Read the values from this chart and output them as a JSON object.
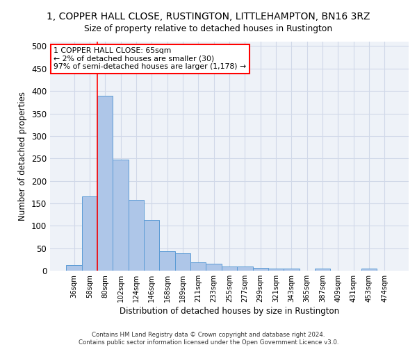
{
  "title": "1, COPPER HALL CLOSE, RUSTINGTON, LITTLEHAMPTON, BN16 3RZ",
  "subtitle": "Size of property relative to detached houses in Rustington",
  "xlabel": "Distribution of detached houses by size in Rustington",
  "ylabel": "Number of detached properties",
  "footer_line1": "Contains HM Land Registry data © Crown copyright and database right 2024.",
  "footer_line2": "Contains public sector information licensed under the Open Government Licence v3.0.",
  "bin_labels": [
    "36sqm",
    "58sqm",
    "80sqm",
    "102sqm",
    "124sqm",
    "146sqm",
    "168sqm",
    "189sqm",
    "211sqm",
    "233sqm",
    "255sqm",
    "277sqm",
    "299sqm",
    "321sqm",
    "343sqm",
    "365sqm",
    "387sqm",
    "409sqm",
    "431sqm",
    "453sqm",
    "474sqm"
  ],
  "bar_values": [
    13,
    165,
    390,
    248,
    157,
    113,
    43,
    39,
    18,
    15,
    10,
    9,
    6,
    5,
    4,
    0,
    5,
    0,
    0,
    5,
    0
  ],
  "bar_color": "#aec6e8",
  "bar_edge_color": "#5b9bd5",
  "grid_color": "#d0d8e8",
  "background_color": "#eef2f8",
  "red_line_x": 1.5,
  "annotation_text": "1 COPPER HALL CLOSE: 65sqm\n← 2% of detached houses are smaller (30)\n97% of semi-detached houses are larger (1,178) →",
  "annotation_box_color": "white",
  "annotation_border_color": "red",
  "ylim": [
    0,
    510
  ],
  "yticks": [
    0,
    50,
    100,
    150,
    200,
    250,
    300,
    350,
    400,
    450,
    500
  ]
}
